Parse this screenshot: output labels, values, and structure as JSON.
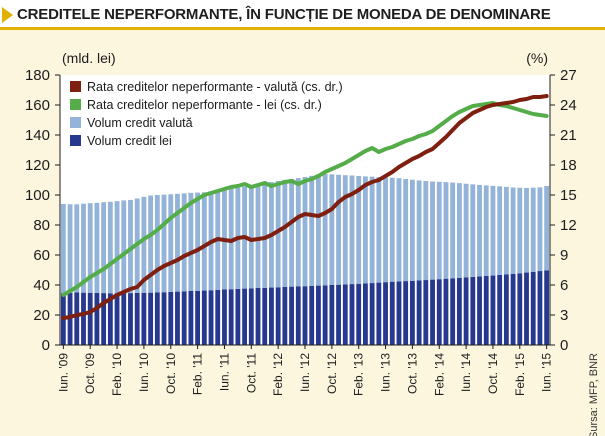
{
  "title": "CREDITELE NEPERFORMANTE, ÎN FUNCȚIE DE MONEDA DE DENOMINARE",
  "source": "Sursa: MFP, BNR",
  "colors": {
    "title_accent": "#e2b100",
    "panel_bg": "#fdf6de",
    "plot_bg": "#ffffff",
    "bar_lei": "#27398f",
    "bar_valuta": "#94b3d8",
    "line_valuta": "#7e1f0f",
    "line_lei": "#55ad4a"
  },
  "chart_data": {
    "type": "bar",
    "title": "CREDITELE NEPERFORMANTE, ÎN FUNCȚIE DE MONEDA DE DENOMINARE",
    "y_left_label": "(mld. lei)",
    "y_right_label": "(%)",
    "y_left_range": [
      0,
      180
    ],
    "y_left_ticks": [
      "0",
      "20",
      "40",
      "60",
      "80",
      "100",
      "120",
      "140",
      "160",
      "180"
    ],
    "y_right_range": [
      0,
      27
    ],
    "y_right_ticks": [
      "0",
      "3",
      "6",
      "9",
      "12",
      "15",
      "18",
      "21",
      "24",
      "27"
    ],
    "x_tick_labels": [
      "Iun. '09",
      "Oct. '09",
      "Feb. '10",
      "Iun. '10",
      "Oct. '10",
      "Feb. '11",
      "Iun. '11",
      "Oct. '11",
      "Feb. '12",
      "Iun. '12",
      "Oct. '12",
      "Feb. '13",
      "Iun. '13",
      "Oct. '13",
      "Feb. '14",
      "Iun. '14",
      "Oct. '14",
      "Feb. '15",
      "Iun. '15"
    ],
    "grid": false,
    "stacked": true,
    "legend_position": "top-left",
    "legend": [
      {
        "label": "Rata creditelor neperformante - valută (cs. dr.)",
        "series": "rata_valuta",
        "kind": "line"
      },
      {
        "label": "Rata creditelor neperformante - lei (cs. dr.)",
        "series": "rata_lei",
        "kind": "line"
      },
      {
        "label": "Volum credit valută",
        "series": "volum_valuta",
        "kind": "bar"
      },
      {
        "label": "Volum credit lei",
        "series": "volum_lei",
        "kind": "bar"
      }
    ],
    "series": [
      {
        "id": "volum_lei",
        "name": "Volum credit lei",
        "axis": "left",
        "kind": "bar",
        "values": [
          34.5,
          34.8,
          35,
          34.9,
          34.8,
          34.7,
          34.6,
          34.5,
          34.5,
          34.6,
          34.6,
          34.7,
          34.8,
          34.9,
          35,
          35.2,
          35.4,
          35.6,
          35.8,
          36,
          36.1,
          36.3,
          36.5,
          36.7,
          37,
          37.2,
          37.4,
          37.6,
          37.8,
          38,
          38.1,
          38.3,
          38.5,
          38.7,
          38.9,
          39,
          39.2,
          39.4,
          39.6,
          39.8,
          40,
          40.2,
          40.4,
          40.6,
          40.8,
          41,
          41.3,
          41.6,
          41.9,
          42.2,
          42.4,
          42.6,
          42.8,
          43,
          43.3,
          43.6,
          43.9,
          44.2,
          44.5,
          44.8,
          45.1,
          45.4,
          45.7,
          46,
          46.3,
          46.7,
          47,
          47.4,
          47.8,
          48.3,
          48.8,
          49.3,
          49.8
        ]
      },
      {
        "id": "volum_valuta",
        "name": "Volum credit valută",
        "axis": "left",
        "kind": "bar",
        "values": [
          59.5,
          59,
          58.8,
          59.3,
          59.7,
          60.1,
          60.6,
          61,
          61.4,
          61.8,
          62.1,
          63,
          64,
          64.8,
          65,
          65,
          65.1,
          65.2,
          65.3,
          65.4,
          65.5,
          65.5,
          66,
          66.5,
          66.8,
          67.2,
          67.5,
          68,
          68.6,
          69.2,
          69.8,
          70.3,
          70.8,
          71.4,
          71.8,
          72.3,
          72.8,
          73.4,
          74,
          74.2,
          73.8,
          73.3,
          72.8,
          72.4,
          71.9,
          71.4,
          70.9,
          70.3,
          69.8,
          69.3,
          68.8,
          68.1,
          67.4,
          66.7,
          66,
          65.4,
          64.9,
          64.4,
          63.8,
          63.1,
          62.4,
          61.7,
          61,
          60.4,
          59.8,
          59.1,
          58.4,
          57.6,
          57,
          56.4,
          56.1,
          55.8,
          56.2
        ]
      },
      {
        "id": "rata_valuta",
        "name": "Rata creditelor neperformante - valută (cs. dr.)",
        "axis": "right",
        "kind": "line",
        "values": [
          2.7,
          2.8,
          3,
          3.1,
          3.3,
          3.7,
          4.2,
          4.6,
          5,
          5.3,
          5.6,
          5.8,
          6.5,
          7,
          7.5,
          7.9,
          8.2,
          8.5,
          8.9,
          9.2,
          9.5,
          9.9,
          10.3,
          10.6,
          10.5,
          10.4,
          10.7,
          10.8,
          10.5,
          10.6,
          10.7,
          11,
          11.4,
          11.8,
          12.3,
          12.8,
          13.1,
          13,
          12.9,
          13.2,
          13.6,
          14.3,
          14.8,
          15.1,
          15.5,
          16,
          16.3,
          16.5,
          16.9,
          17.3,
          17.8,
          18.2,
          18.6,
          18.9,
          19.3,
          19.6,
          20.2,
          20.8,
          21.5,
          22.2,
          22.7,
          23.2,
          23.5,
          23.8,
          24,
          24.1,
          24.2,
          24.3,
          24.5,
          24.6,
          24.8,
          24.8,
          24.9
        ]
      },
      {
        "id": "rata_lei",
        "name": "Rata creditelor neperformante - lei (cs. dr.)",
        "axis": "right",
        "kind": "line",
        "values": [
          5,
          5.4,
          5.8,
          6.3,
          6.8,
          7.2,
          7.6,
          8.1,
          8.6,
          9.1,
          9.6,
          10.1,
          10.6,
          11,
          11.5,
          12.1,
          12.7,
          13.2,
          13.7,
          14.2,
          14.6,
          15,
          15.2,
          15.4,
          15.6,
          15.8,
          15.9,
          16.1,
          15.8,
          16,
          16.2,
          15.9,
          16.1,
          16.3,
          16.4,
          16.1,
          16.4,
          16.6,
          16.9,
          17.3,
          17.6,
          17.9,
          18.2,
          18.6,
          19,
          19.4,
          19.7,
          19.3,
          19.6,
          19.8,
          20.1,
          20.4,
          20.6,
          20.9,
          21.1,
          21.4,
          21.9,
          22.4,
          22.9,
          23.3,
          23.6,
          23.9,
          24,
          24.1,
          24.2,
          24,
          23.9,
          23.7,
          23.5,
          23.3,
          23.1,
          23,
          22.9
        ]
      }
    ]
  }
}
